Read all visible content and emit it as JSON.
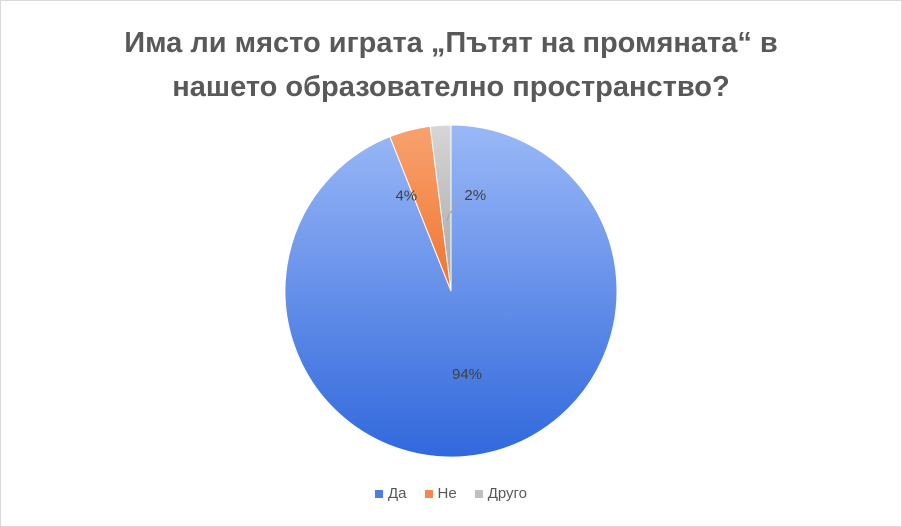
{
  "chart_data": {
    "type": "pie",
    "title_line1": "Има ли място играта „Пътят на промяната“ в",
    "title_line2": "нашето образователно пространство?",
    "slices": [
      {
        "label": "Да",
        "value": 94,
        "data_label": "94%",
        "color": "#4a7ee6"
      },
      {
        "label": "Не",
        "value": 4,
        "data_label": "4%",
        "color": "#f4894a"
      },
      {
        "label": "Друго",
        "value": 2,
        "data_label": "2%",
        "color": "#bfbfbf"
      }
    ],
    "legend_position": "bottom"
  }
}
